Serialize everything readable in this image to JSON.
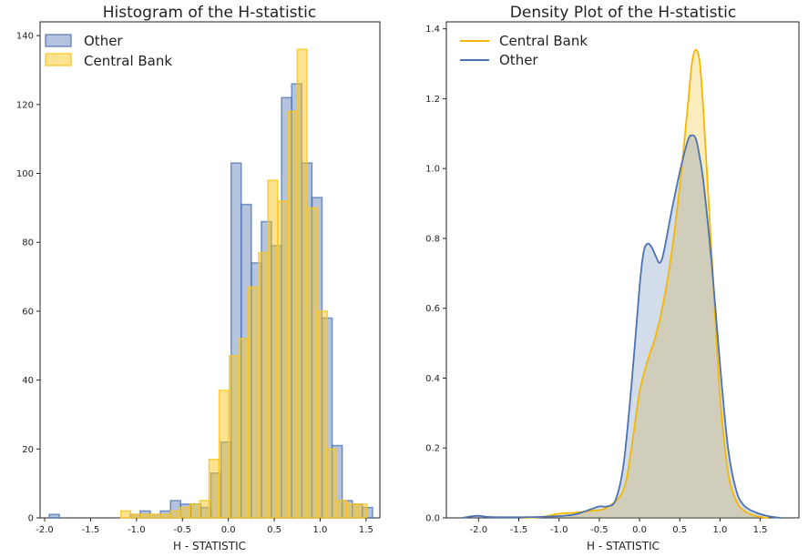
{
  "colors": {
    "other": "#4c72b0",
    "central": "#f5b700",
    "central_hist": "#f9c723"
  },
  "chart_data": [
    {
      "type": "bar",
      "title": "Histogram of the H-statistic",
      "xlabel": "H - STATISTIC",
      "ylabel": "",
      "xlim": [
        -2.05,
        1.65
      ],
      "ylim": [
        0,
        144
      ],
      "xticks": [
        "-2.0",
        "-1.5",
        "-1.0",
        "-0.5",
        "0.0",
        "0.5",
        "1.0",
        "1.5"
      ],
      "yticks": [
        "0",
        "20",
        "40",
        "60",
        "80",
        "100",
        "120",
        "140"
      ],
      "grid": false,
      "legend_position": "top-left",
      "series": [
        {
          "name": "Other",
          "bin_width": 0.11,
          "bins": [
            [
              -1.95,
              1
            ],
            [
              -1.07,
              1
            ],
            [
              -0.96,
              2
            ],
            [
              -0.85,
              1
            ],
            [
              -0.74,
              2
            ],
            [
              -0.63,
              5
            ],
            [
              -0.52,
              4
            ],
            [
              -0.41,
              4
            ],
            [
              -0.3,
              3
            ],
            [
              -0.19,
              13
            ],
            [
              -0.08,
              22
            ],
            [
              0.03,
              103
            ],
            [
              0.14,
              91
            ],
            [
              0.25,
              74
            ],
            [
              0.36,
              86
            ],
            [
              0.47,
              79
            ],
            [
              0.58,
              122
            ],
            [
              0.69,
              126
            ],
            [
              0.8,
              103
            ],
            [
              0.91,
              93
            ],
            [
              1.02,
              58
            ],
            [
              1.13,
              21
            ],
            [
              1.24,
              5
            ],
            [
              1.35,
              4
            ],
            [
              1.46,
              3
            ]
          ]
        },
        {
          "name": "Central Bank",
          "bin_width": 0.107,
          "bins": [
            [
              -1.17,
              2
            ],
            [
              -1.06,
              1
            ],
            [
              -0.95,
              1
            ],
            [
              -0.85,
              1
            ],
            [
              -0.74,
              1
            ],
            [
              -0.63,
              2
            ],
            [
              -0.53,
              3
            ],
            [
              -0.42,
              4
            ],
            [
              -0.31,
              5
            ],
            [
              -0.21,
              17
            ],
            [
              -0.1,
              37
            ],
            [
              0.01,
              47
            ],
            [
              0.11,
              52
            ],
            [
              0.22,
              67
            ],
            [
              0.33,
              77
            ],
            [
              0.43,
              98
            ],
            [
              0.54,
              92
            ],
            [
              0.65,
              118
            ],
            [
              0.75,
              136
            ],
            [
              0.86,
              90
            ],
            [
              0.97,
              60
            ],
            [
              1.07,
              20
            ],
            [
              1.18,
              5
            ],
            [
              1.29,
              4
            ],
            [
              1.4,
              4
            ]
          ]
        }
      ]
    },
    {
      "type": "area",
      "title": "Density Plot of the H-statistic",
      "xlabel": "H - STATISTIC",
      "ylabel": "",
      "xlim": [
        -2.4,
        1.98
      ],
      "ylim": [
        0,
        1.42
      ],
      "xticks": [
        "-2.0",
        "-1.5",
        "-1.0",
        "-0.5",
        "0.0",
        "0.5",
        "1.0",
        "1.5"
      ],
      "yticks": [
        "0.0",
        "0.2",
        "0.4",
        "0.6",
        "0.8",
        "1.0",
        "1.2",
        "1.4"
      ],
      "grid": false,
      "legend_position": "top-left",
      "series": [
        {
          "name": "Central Bank",
          "x": [
            -1.45,
            -1.2,
            -1.0,
            -0.8,
            -0.6,
            -0.4,
            -0.2,
            -0.1,
            0.0,
            0.1,
            0.2,
            0.3,
            0.4,
            0.5,
            0.6,
            0.65,
            0.7,
            0.75,
            0.8,
            0.9,
            1.0,
            1.1,
            1.2,
            1.3,
            1.45,
            1.6
          ],
          "y": [
            0.0,
            0.003,
            0.012,
            0.015,
            0.02,
            0.03,
            0.08,
            0.2,
            0.36,
            0.45,
            0.52,
            0.62,
            0.76,
            0.95,
            1.18,
            1.3,
            1.34,
            1.3,
            1.14,
            0.74,
            0.35,
            0.13,
            0.05,
            0.02,
            0.005,
            0.0
          ]
        },
        {
          "name": "Other",
          "x": [
            -2.2,
            -2.1,
            -2.0,
            -1.9,
            -1.7,
            -1.5,
            -1.2,
            -1.0,
            -0.8,
            -0.6,
            -0.5,
            -0.4,
            -0.3,
            -0.2,
            -0.1,
            0.0,
            0.05,
            0.1,
            0.15,
            0.2,
            0.25,
            0.3,
            0.4,
            0.5,
            0.6,
            0.65,
            0.7,
            0.75,
            0.8,
            0.9,
            1.0,
            1.1,
            1.2,
            1.3,
            1.45,
            1.6,
            1.75
          ],
          "y": [
            0.0,
            0.004,
            0.006,
            0.003,
            0.002,
            0.002,
            0.003,
            0.005,
            0.01,
            0.025,
            0.033,
            0.033,
            0.05,
            0.15,
            0.38,
            0.66,
            0.76,
            0.785,
            0.775,
            0.75,
            0.73,
            0.76,
            0.88,
            0.99,
            1.08,
            1.095,
            1.085,
            1.03,
            0.95,
            0.72,
            0.44,
            0.2,
            0.08,
            0.035,
            0.015,
            0.005,
            0.0
          ]
        }
      ]
    }
  ]
}
